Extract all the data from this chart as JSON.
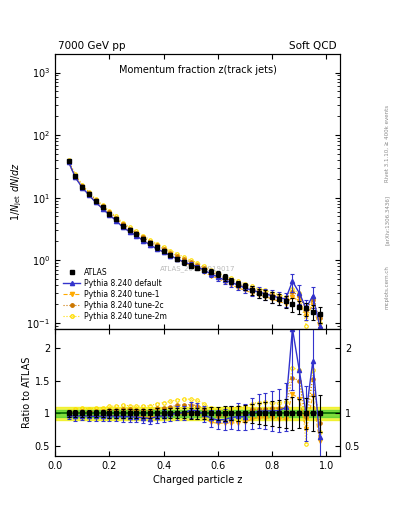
{
  "title_top_left": "7000 GeV pp",
  "title_top_right": "Soft QCD",
  "main_title": "Momentum fraction z(track jets)",
  "xlabel": "Charged particle z",
  "ylabel_main": "1/N$_{jet}$ dN/dz",
  "ylabel_ratio": "Ratio to ATLAS",
  "watermark": "ATLAS_2011_I919017",
  "rivet_label": "Rivet 3.1.10, ≥ 400k events",
  "arxiv_label": "[arXiv:1306.3436]",
  "mcplots_label": "mcplots.cern.ch",
  "atlas_x": [
    0.05,
    0.075,
    0.1,
    0.125,
    0.15,
    0.175,
    0.2,
    0.225,
    0.25,
    0.275,
    0.3,
    0.325,
    0.35,
    0.375,
    0.4,
    0.425,
    0.45,
    0.475,
    0.5,
    0.525,
    0.55,
    0.575,
    0.6,
    0.625,
    0.65,
    0.675,
    0.7,
    0.725,
    0.75,
    0.775,
    0.8,
    0.825,
    0.85,
    0.875,
    0.9,
    0.925,
    0.95,
    0.975
  ],
  "atlas_y": [
    38.0,
    22.0,
    15.0,
    11.5,
    8.8,
    7.0,
    5.5,
    4.5,
    3.5,
    3.0,
    2.6,
    2.2,
    1.9,
    1.6,
    1.4,
    1.2,
    1.05,
    0.92,
    0.82,
    0.75,
    0.7,
    0.65,
    0.6,
    0.53,
    0.47,
    0.42,
    0.38,
    0.33,
    0.3,
    0.28,
    0.26,
    0.24,
    0.22,
    0.2,
    0.18,
    0.17,
    0.15,
    0.14
  ],
  "atlas_yerr": [
    2.0,
    1.2,
    0.8,
    0.6,
    0.5,
    0.4,
    0.35,
    0.3,
    0.25,
    0.22,
    0.18,
    0.16,
    0.14,
    0.12,
    0.1,
    0.09,
    0.08,
    0.07,
    0.07,
    0.06,
    0.06,
    0.06,
    0.06,
    0.06,
    0.05,
    0.05,
    0.05,
    0.05,
    0.05,
    0.05,
    0.05,
    0.05,
    0.05,
    0.05,
    0.04,
    0.04,
    0.04,
    0.04
  ],
  "py_default_x": [
    0.05,
    0.075,
    0.1,
    0.125,
    0.15,
    0.175,
    0.2,
    0.225,
    0.25,
    0.275,
    0.3,
    0.325,
    0.35,
    0.375,
    0.4,
    0.425,
    0.45,
    0.475,
    0.5,
    0.525,
    0.55,
    0.575,
    0.6,
    0.625,
    0.65,
    0.675,
    0.7,
    0.725,
    0.75,
    0.775,
    0.8,
    0.825,
    0.85,
    0.875,
    0.9,
    0.925,
    0.95,
    0.975
  ],
  "py_default_y": [
    37.0,
    21.0,
    14.5,
    11.0,
    8.4,
    6.7,
    5.3,
    4.3,
    3.35,
    2.85,
    2.45,
    2.05,
    1.75,
    1.52,
    1.35,
    1.18,
    1.05,
    0.93,
    0.86,
    0.78,
    0.69,
    0.6,
    0.54,
    0.48,
    0.44,
    0.4,
    0.36,
    0.33,
    0.31,
    0.29,
    0.27,
    0.25,
    0.24,
    0.46,
    0.3,
    0.17,
    0.27,
    0.09
  ],
  "py_default_yerr": [
    1.5,
    1.0,
    0.7,
    0.55,
    0.45,
    0.35,
    0.28,
    0.22,
    0.18,
    0.16,
    0.13,
    0.12,
    0.1,
    0.09,
    0.09,
    0.08,
    0.08,
    0.07,
    0.07,
    0.07,
    0.06,
    0.06,
    0.07,
    0.07,
    0.07,
    0.07,
    0.06,
    0.06,
    0.06,
    0.06,
    0.06,
    0.06,
    0.06,
    0.15,
    0.1,
    0.06,
    0.1,
    0.04
  ],
  "py_tune1_x": [
    0.05,
    0.075,
    0.1,
    0.125,
    0.15,
    0.175,
    0.2,
    0.225,
    0.25,
    0.275,
    0.3,
    0.325,
    0.35,
    0.375,
    0.4,
    0.425,
    0.45,
    0.475,
    0.5,
    0.525,
    0.55,
    0.575,
    0.6,
    0.625,
    0.65,
    0.675,
    0.7,
    0.725,
    0.75,
    0.775,
    0.8,
    0.825,
    0.85,
    0.875,
    0.9,
    0.925,
    0.95,
    0.975
  ],
  "py_tune1_y": [
    36.5,
    21.0,
    14.5,
    11.0,
    8.4,
    6.7,
    5.3,
    4.35,
    3.4,
    2.88,
    2.47,
    2.08,
    1.78,
    1.54,
    1.34,
    1.17,
    1.04,
    0.91,
    0.82,
    0.74,
    0.65,
    0.56,
    0.51,
    0.45,
    0.4,
    0.36,
    0.33,
    0.3,
    0.28,
    0.26,
    0.24,
    0.22,
    0.2,
    0.26,
    0.22,
    0.13,
    0.19,
    0.08
  ],
  "py_tune2c_x": [
    0.05,
    0.075,
    0.1,
    0.125,
    0.15,
    0.175,
    0.2,
    0.225,
    0.25,
    0.275,
    0.3,
    0.325,
    0.35,
    0.375,
    0.4,
    0.425,
    0.45,
    0.475,
    0.5,
    0.525,
    0.55,
    0.575,
    0.6,
    0.625,
    0.65,
    0.675,
    0.7,
    0.725,
    0.75,
    0.775,
    0.8,
    0.825,
    0.85,
    0.875,
    0.9,
    0.925,
    0.95,
    0.975
  ],
  "py_tune2c_y": [
    38.5,
    22.5,
    15.5,
    11.8,
    9.1,
    7.25,
    5.8,
    4.75,
    3.75,
    3.18,
    2.72,
    2.32,
    1.98,
    1.72,
    1.52,
    1.32,
    1.18,
    1.04,
    0.93,
    0.84,
    0.75,
    0.65,
    0.58,
    0.52,
    0.47,
    0.42,
    0.38,
    0.35,
    0.32,
    0.3,
    0.28,
    0.26,
    0.24,
    0.31,
    0.27,
    0.16,
    0.23,
    0.12
  ],
  "py_tune2m_x": [
    0.05,
    0.075,
    0.1,
    0.125,
    0.15,
    0.175,
    0.2,
    0.225,
    0.25,
    0.275,
    0.3,
    0.325,
    0.35,
    0.375,
    0.4,
    0.425,
    0.45,
    0.475,
    0.5,
    0.525,
    0.55,
    0.575,
    0.6,
    0.625,
    0.65,
    0.675,
    0.7,
    0.725,
    0.75,
    0.775,
    0.8,
    0.825,
    0.85,
    0.875,
    0.9,
    0.925,
    0.95,
    0.975
  ],
  "py_tune2m_y": [
    39.5,
    23.5,
    16.2,
    12.3,
    9.5,
    7.6,
    6.1,
    5.0,
    3.95,
    3.35,
    2.88,
    2.46,
    2.12,
    1.84,
    1.63,
    1.42,
    1.27,
    1.12,
    1.0,
    0.9,
    0.8,
    0.7,
    0.63,
    0.56,
    0.51,
    0.46,
    0.42,
    0.38,
    0.35,
    0.33,
    0.3,
    0.28,
    0.26,
    0.34,
    0.3,
    0.09,
    0.25,
    0.1
  ],
  "color_atlas": "#000000",
  "color_default": "#3333cc",
  "color_tune1": "#ffaa00",
  "color_tune2c": "#cc7700",
  "color_tune2m": "#ffdd00",
  "ratio_band_green": 0.05,
  "ratio_band_yellow": 0.1,
  "color_green": "#33cc33",
  "color_yellow": "#eeee00",
  "xlim": [
    0.0,
    1.05
  ],
  "ylim_main": [
    0.08,
    2000.0
  ],
  "ylim_ratio": [
    0.35,
    2.3
  ],
  "ratio_yticks": [
    0.5,
    1.0,
    1.5,
    2.0
  ],
  "ratio_yticklabels": [
    "0.5",
    "1",
    "1.5",
    "2"
  ]
}
